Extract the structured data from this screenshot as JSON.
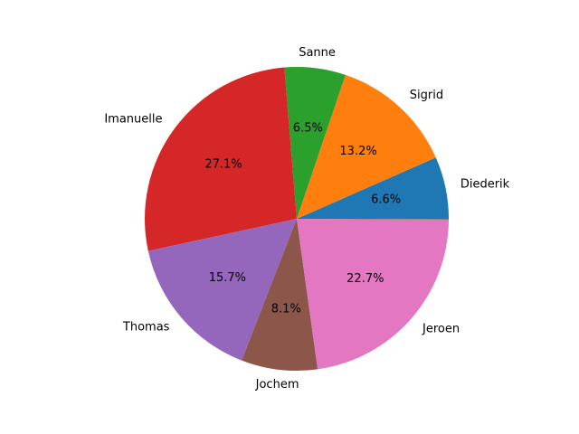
{
  "chart_data": {
    "type": "pie",
    "title": "",
    "start_angle_deg": 0,
    "direction": "counterclockwise",
    "slices": [
      {
        "label": "Diederik",
        "percent_label": "6.6%",
        "value": 6.6,
        "color": "#1f77b4"
      },
      {
        "label": "Sigrid",
        "percent_label": "13.2%",
        "value": 13.2,
        "color": "#ff7f0e"
      },
      {
        "label": "Sanne",
        "percent_label": "6.5%",
        "value": 6.5,
        "color": "#2ca02c"
      },
      {
        "label": "Imanuelle",
        "percent_label": "27.1%",
        "value": 27.1,
        "color": "#d62728"
      },
      {
        "label": "Thomas",
        "percent_label": "15.7%",
        "value": 15.7,
        "color": "#9467bd"
      },
      {
        "label": "Jochem",
        "percent_label": "8.1%",
        "value": 8.1,
        "color": "#8c564b"
      },
      {
        "label": "Jeroen",
        "percent_label": "22.7%",
        "value": 22.7,
        "color": "#e377c2"
      },
      {
        "label": "",
        "percent_label": "",
        "value": 0.1,
        "color": "#7f7f7f"
      }
    ]
  }
}
